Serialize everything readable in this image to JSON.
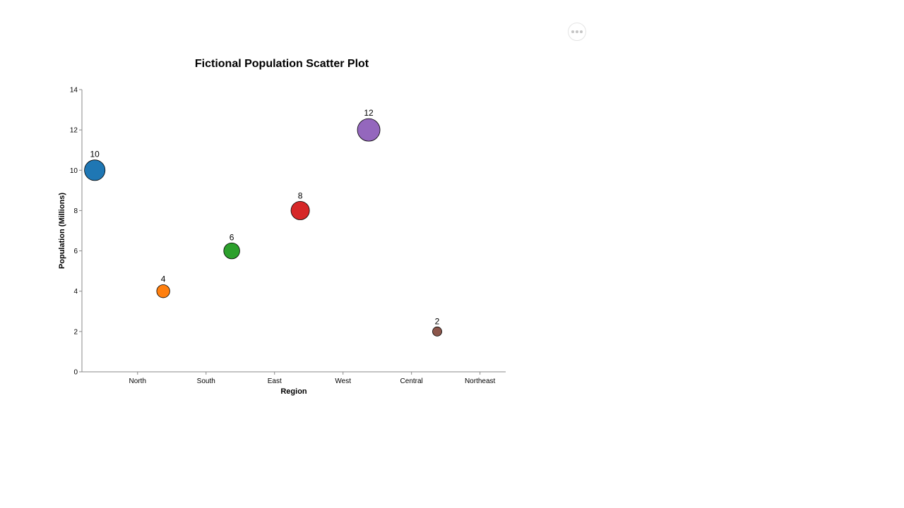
{
  "menu": {
    "icon": "more-horizontal-icon"
  },
  "chart_data": {
    "type": "scatter",
    "title": "Fictional Population Scatter Plot",
    "xlabel": "Region",
    "ylabel": "Population (Millions)",
    "categories": [
      "North",
      "South",
      "East",
      "West",
      "Central",
      "Northeast"
    ],
    "ylim": [
      0,
      14
    ],
    "yticks": [
      0,
      2,
      4,
      6,
      8,
      10,
      12,
      14
    ],
    "grid": false,
    "legend": "none",
    "points": [
      {
        "label": "10",
        "x": 0.8,
        "y": 10,
        "size": 10,
        "color": "#1f77b4"
      },
      {
        "label": "4",
        "x": 1.6,
        "y": 4,
        "size": 4,
        "color": "#ff7f0e"
      },
      {
        "label": "6",
        "x": 2.4,
        "y": 6,
        "size": 6,
        "color": "#2ca02c"
      },
      {
        "label": "8",
        "x": 3.2,
        "y": 8,
        "size": 8,
        "color": "#d62728"
      },
      {
        "label": "12",
        "x": 4.0,
        "y": 12,
        "size": 12,
        "color": "#9467bd"
      },
      {
        "label": "2",
        "x": 4.8,
        "y": 2,
        "size": 2,
        "color": "#8c564b"
      }
    ],
    "category_positions": [
      1.3,
      2.1,
      2.9,
      3.7,
      4.5,
      5.3
    ],
    "xlim": [
      0.65,
      5.6
    ]
  }
}
